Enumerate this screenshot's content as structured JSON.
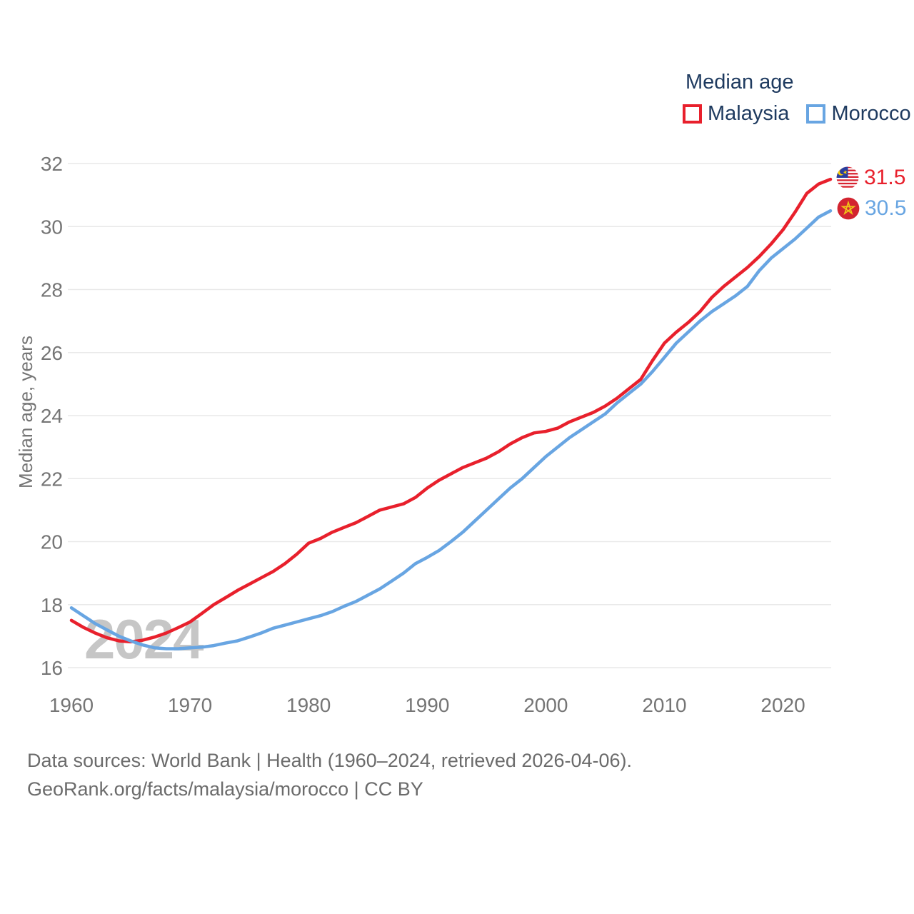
{
  "legend": {
    "title": "Median age",
    "items": [
      {
        "label": "Malaysia",
        "color": "#e8202c"
      },
      {
        "label": "Morocco",
        "color": "#68a5e2"
      }
    ]
  },
  "end_labels": [
    {
      "series": "Malaysia",
      "value": "31.5",
      "flag": "malaysia-flag"
    },
    {
      "series": "Morocco",
      "value": "30.5",
      "flag": "morocco-flag"
    }
  ],
  "watermark": "2024",
  "footer": {
    "line1": "Data sources: World Bank | Health (1960–2024, retrieved 2026-04-06).",
    "line2": "GeoRank.org/facts/malaysia/morocco | CC BY"
  },
  "chart_data": {
    "type": "line",
    "title": "Median age",
    "ylabel": "Median age, years",
    "xlabel": "",
    "xlim": [
      1960,
      2024
    ],
    "ylim": [
      16,
      32
    ],
    "x_ticks": [
      1960,
      1970,
      1980,
      1990,
      2000,
      2010,
      2020
    ],
    "y_ticks": [
      16,
      18,
      20,
      22,
      24,
      26,
      28,
      30,
      32
    ],
    "grid": "horizontal",
    "legend_position": "top-right",
    "years": [
      1960,
      1961,
      1962,
      1963,
      1964,
      1965,
      1966,
      1967,
      1968,
      1969,
      1970,
      1971,
      1972,
      1973,
      1974,
      1975,
      1976,
      1977,
      1978,
      1979,
      1980,
      1981,
      1982,
      1983,
      1984,
      1985,
      1986,
      1987,
      1988,
      1989,
      1990,
      1991,
      1992,
      1993,
      1994,
      1995,
      1996,
      1997,
      1998,
      1999,
      2000,
      2001,
      2002,
      2003,
      2004,
      2005,
      2006,
      2007,
      2008,
      2009,
      2010,
      2011,
      2012,
      2013,
      2014,
      2015,
      2016,
      2017,
      2018,
      2019,
      2020,
      2021,
      2022,
      2023,
      2024
    ],
    "series": [
      {
        "name": "Malaysia",
        "color": "#e8202c",
        "end_value": 31.5,
        "values": [
          17.5,
          17.28,
          17.1,
          16.95,
          16.85,
          16.82,
          16.87,
          16.97,
          17.1,
          17.27,
          17.45,
          17.72,
          18.0,
          18.22,
          18.45,
          18.65,
          18.85,
          19.05,
          19.3,
          19.6,
          19.95,
          20.1,
          20.3,
          20.45,
          20.6,
          20.8,
          21.0,
          21.1,
          21.2,
          21.4,
          21.7,
          21.95,
          22.15,
          22.35,
          22.5,
          22.65,
          22.85,
          23.1,
          23.3,
          23.45,
          23.5,
          23.6,
          23.8,
          23.95,
          24.1,
          24.3,
          24.55,
          24.85,
          25.15,
          25.75,
          26.3,
          26.65,
          26.95,
          27.3,
          27.75,
          28.1,
          28.4,
          28.7,
          29.05,
          29.45,
          29.9,
          30.45,
          31.05,
          31.35,
          31.5
        ]
      },
      {
        "name": "Morocco",
        "color": "#68a5e2",
        "end_value": 30.5,
        "values": [
          17.9,
          17.65,
          17.4,
          17.2,
          17.0,
          16.85,
          16.72,
          16.63,
          16.6,
          16.6,
          16.63,
          16.65,
          16.7,
          16.78,
          16.85,
          16.97,
          17.1,
          17.25,
          17.35,
          17.45,
          17.55,
          17.65,
          17.78,
          17.95,
          18.1,
          18.3,
          18.5,
          18.75,
          19.0,
          19.3,
          19.5,
          19.72,
          20.0,
          20.3,
          20.65,
          21.0,
          21.35,
          21.7,
          22.0,
          22.35,
          22.7,
          23.0,
          23.3,
          23.55,
          23.8,
          24.05,
          24.4,
          24.7,
          25.0,
          25.4,
          25.85,
          26.3,
          26.65,
          27.0,
          27.3,
          27.55,
          27.8,
          28.1,
          28.6,
          29.0,
          29.3,
          29.6,
          29.95,
          30.3,
          30.5
        ]
      }
    ]
  }
}
